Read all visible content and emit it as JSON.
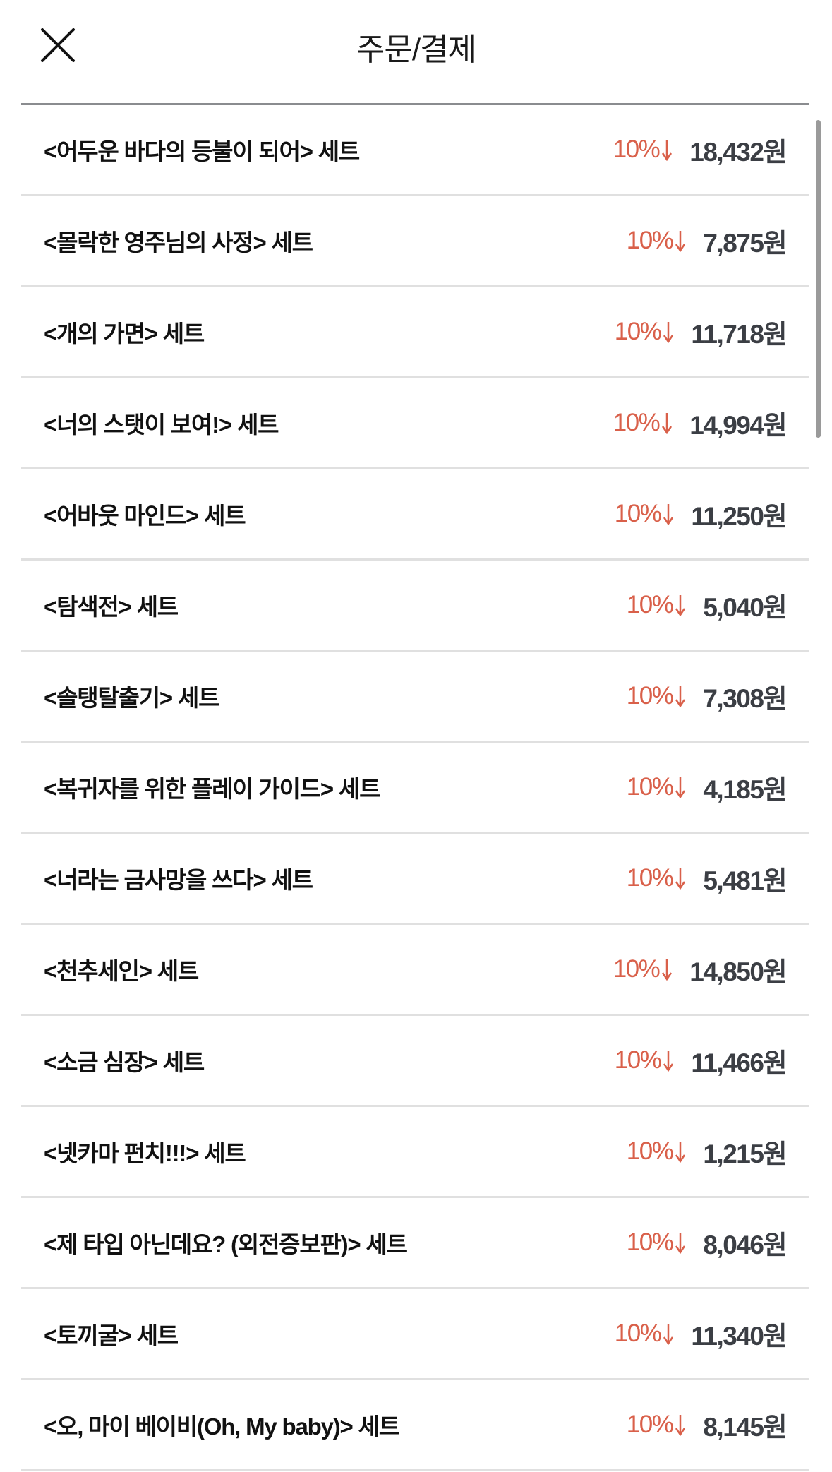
{
  "header": {
    "title": "주문/결제",
    "close_icon": "close-icon"
  },
  "colors": {
    "discount": "#d9604a",
    "price": "#3b3e44",
    "divider": "#e0e0e0"
  },
  "items": [
    {
      "name": "<어두운 바다의 등불이 되어> 세트",
      "discount": "10%",
      "price": "18,432원"
    },
    {
      "name": "<몰락한 영주님의 사정> 세트",
      "discount": "10%",
      "price": "7,875원"
    },
    {
      "name": "<개의 가면> 세트",
      "discount": "10%",
      "price": "11,718원"
    },
    {
      "name": "<너의 스탯이 보여!> 세트",
      "discount": "10%",
      "price": "14,994원"
    },
    {
      "name": "<어바웃 마인드> 세트",
      "discount": "10%",
      "price": "11,250원"
    },
    {
      "name": "<탐색전> 세트",
      "discount": "10%",
      "price": "5,040원"
    },
    {
      "name": "<솔탱탈출기> 세트",
      "discount": "10%",
      "price": "7,308원"
    },
    {
      "name": "<복귀자를 위한 플레이 가이드> 세트",
      "discount": "10%",
      "price": "4,185원"
    },
    {
      "name": "<너라는 금사망을 쓰다> 세트",
      "discount": "10%",
      "price": "5,481원"
    },
    {
      "name": "<천추세인> 세트",
      "discount": "10%",
      "price": "14,850원"
    },
    {
      "name": "<소금 심장> 세트",
      "discount": "10%",
      "price": "11,466원"
    },
    {
      "name": "<넷카마 펀치!!!> 세트",
      "discount": "10%",
      "price": "1,215원"
    },
    {
      "name": "<제 타입 아닌데요? (외전증보판)> 세트",
      "discount": "10%",
      "price": "8,046원"
    },
    {
      "name": "<토끼굴> 세트",
      "discount": "10%",
      "price": "11,340원"
    },
    {
      "name": "<오, 마이 베이비(Oh, My baby)> 세트",
      "discount": "10%",
      "price": "8,145원"
    }
  ]
}
